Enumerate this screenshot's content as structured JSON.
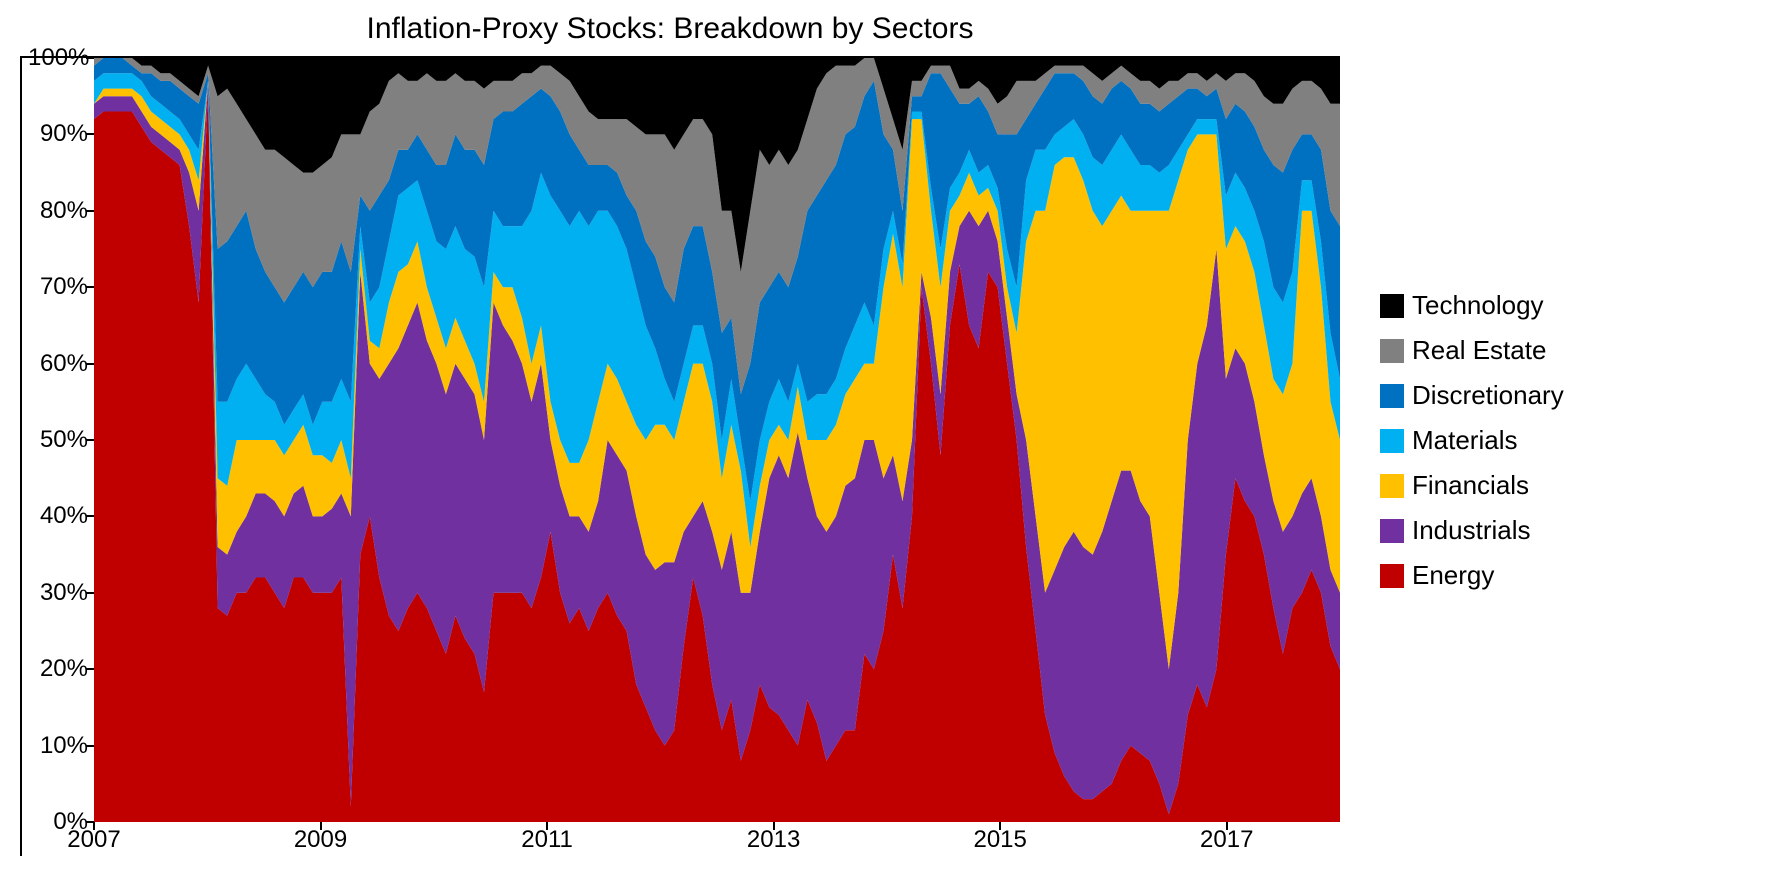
{
  "chart": {
    "type": "stacked_area_100pct",
    "title": "Inflation-Proxy Stocks: Breakdown by Sectors",
    "title_fontsize": 30,
    "title_color": "#000000",
    "background_color": "#ffffff",
    "border_color": "#000000",
    "axis_font_size": 24,
    "axis_font_color": "#000000",
    "x": {
      "start": 2007.0,
      "end": 2018.0,
      "ticks": [
        2007,
        2009,
        2011,
        2013,
        2015,
        2017
      ],
      "step_per_point": 0.083333
    },
    "y": {
      "min": 0,
      "max": 100,
      "ticks": [
        0,
        10,
        20,
        30,
        40,
        50,
        60,
        70,
        80,
        90,
        100
      ],
      "tick_format": "percent"
    },
    "legend": {
      "order_top_to_bottom": [
        "Technology",
        "Real Estate",
        "Discretionary",
        "Materials",
        "Financials",
        "Industrials",
        "Energy"
      ],
      "fontsize": 26,
      "position": "right"
    },
    "series_stack_order_bottom_to_top": [
      "energy",
      "industrials",
      "financials",
      "materials",
      "discretionary",
      "real_estate",
      "technology"
    ],
    "series": {
      "energy": {
        "label": "Energy",
        "color": "#c00000"
      },
      "industrials": {
        "label": "Industrials",
        "color": "#7030a0"
      },
      "financials": {
        "label": "Financials",
        "color": "#ffc000"
      },
      "materials": {
        "label": "Materials",
        "color": "#00b0f0"
      },
      "discretionary": {
        "label": "Discretionary",
        "color": "#0070c0"
      },
      "real_estate": {
        "label": "Real Estate",
        "color": "#808080"
      },
      "technology": {
        "label": "Technology",
        "color": "#000000"
      }
    },
    "cum_top": {
      "energy": [
        92,
        93,
        93,
        93,
        93,
        91,
        89,
        88,
        87,
        86,
        78,
        68,
        96,
        28,
        27,
        30,
        30,
        32,
        32,
        30,
        28,
        32,
        32,
        30,
        30,
        30,
        32,
        2,
        35,
        40,
        32,
        27,
        25,
        28,
        30,
        28,
        25,
        22,
        27,
        24,
        22,
        17,
        30,
        30,
        30,
        30,
        28,
        32,
        38,
        30,
        26,
        28,
        25,
        28,
        30,
        27,
        25,
        18,
        15,
        12,
        10,
        12,
        23,
        32,
        27,
        18,
        12,
        16,
        8,
        12,
        18,
        15,
        14,
        12,
        10,
        16,
        13,
        8,
        10,
        12,
        12,
        22,
        20,
        25,
        35,
        28,
        40,
        70,
        60,
        48,
        65,
        73,
        65,
        62,
        72,
        70,
        60,
        50,
        36,
        25,
        14,
        9,
        6,
        4,
        3,
        3,
        4,
        5,
        8,
        10,
        9,
        8,
        5,
        1,
        5,
        14,
        18,
        15,
        20,
        35,
        45,
        42,
        40,
        35,
        28,
        22,
        28,
        30,
        33,
        30,
        23,
        20
      ],
      "industrials": [
        94,
        95,
        95,
        95,
        95,
        93,
        91,
        90,
        89,
        88,
        85,
        80,
        97,
        36,
        35,
        38,
        40,
        43,
        43,
        42,
        40,
        43,
        44,
        40,
        40,
        41,
        43,
        40,
        72,
        60,
        58,
        60,
        62,
        65,
        68,
        63,
        60,
        56,
        60,
        58,
        56,
        50,
        68,
        65,
        63,
        60,
        55,
        60,
        50,
        44,
        40,
        40,
        38,
        42,
        50,
        48,
        46,
        40,
        35,
        33,
        34,
        34,
        38,
        40,
        42,
        38,
        33,
        38,
        30,
        30,
        38,
        45,
        48,
        45,
        51,
        45,
        40,
        38,
        40,
        44,
        45,
        50,
        50,
        45,
        48,
        42,
        50,
        72,
        66,
        56,
        72,
        78,
        80,
        78,
        80,
        76,
        66,
        56,
        50,
        40,
        30,
        33,
        36,
        38,
        36,
        35,
        38,
        42,
        46,
        46,
        42,
        40,
        30,
        20,
        30,
        50,
        60,
        65,
        75,
        58,
        62,
        60,
        55,
        48,
        42,
        38,
        40,
        43,
        45,
        40,
        33,
        30
      ],
      "financials": [
        94,
        96,
        96,
        96,
        96,
        95,
        93,
        92,
        91,
        90,
        88,
        84,
        97,
        45,
        44,
        50,
        50,
        50,
        50,
        50,
        48,
        50,
        52,
        48,
        48,
        47,
        50,
        45,
        75,
        63,
        62,
        68,
        72,
        73,
        76,
        70,
        66,
        62,
        66,
        63,
        60,
        55,
        72,
        70,
        70,
        66,
        60,
        65,
        55,
        50,
        47,
        47,
        50,
        55,
        60,
        58,
        55,
        52,
        50,
        52,
        52,
        50,
        55,
        60,
        60,
        55,
        45,
        52,
        46,
        36,
        44,
        50,
        52,
        50,
        57,
        50,
        50,
        50,
        52,
        56,
        58,
        60,
        60,
        70,
        77,
        70,
        92,
        92,
        80,
        70,
        80,
        82,
        85,
        82,
        83,
        80,
        70,
        64,
        76,
        80,
        80,
        86,
        87,
        87,
        84,
        80,
        78,
        80,
        82,
        80,
        80,
        80,
        80,
        80,
        84,
        88,
        90,
        90,
        90,
        75,
        78,
        76,
        72,
        65,
        58,
        56,
        60,
        80,
        80,
        70,
        55,
        50
      ],
      "materials": [
        97,
        98,
        98,
        98,
        98,
        97,
        95,
        94,
        93,
        92,
        90,
        88,
        97,
        55,
        55,
        58,
        60,
        58,
        56,
        55,
        52,
        54,
        56,
        52,
        55,
        55,
        58,
        55,
        78,
        68,
        70,
        76,
        82,
        83,
        84,
        80,
        76,
        75,
        78,
        75,
        74,
        70,
        80,
        78,
        78,
        78,
        80,
        85,
        82,
        80,
        78,
        80,
        78,
        80,
        80,
        78,
        75,
        70,
        65,
        62,
        58,
        55,
        60,
        65,
        65,
        60,
        50,
        58,
        50,
        42,
        50,
        55,
        58,
        55,
        60,
        55,
        56,
        56,
        58,
        62,
        65,
        68,
        65,
        75,
        80,
        73,
        93,
        93,
        83,
        75,
        83,
        85,
        88,
        85,
        86,
        83,
        75,
        70,
        84,
        88,
        88,
        90,
        91,
        92,
        90,
        87,
        86,
        88,
        90,
        88,
        86,
        86,
        85,
        86,
        88,
        90,
        92,
        92,
        92,
        82,
        85,
        83,
        80,
        76,
        70,
        68,
        72,
        84,
        84,
        76,
        64,
        58
      ],
      "discretionary": [
        99,
        100,
        100,
        100,
        99,
        98,
        98,
        97,
        97,
        96,
        95,
        94,
        98,
        75,
        76,
        78,
        80,
        75,
        72,
        70,
        68,
        70,
        72,
        70,
        72,
        72,
        76,
        72,
        82,
        80,
        82,
        84,
        88,
        88,
        90,
        88,
        86,
        86,
        90,
        88,
        88,
        86,
        92,
        93,
        93,
        94,
        95,
        96,
        95,
        93,
        90,
        88,
        86,
        86,
        86,
        85,
        82,
        80,
        76,
        74,
        70,
        68,
        75,
        78,
        78,
        72,
        64,
        66,
        56,
        60,
        68,
        70,
        72,
        70,
        74,
        80,
        82,
        84,
        86,
        90,
        91,
        95,
        97,
        90,
        88,
        80,
        95,
        95,
        98,
        98,
        96,
        94,
        94,
        95,
        93,
        90,
        90,
        90,
        92,
        94,
        96,
        98,
        98,
        98,
        97,
        95,
        94,
        96,
        97,
        96,
        94,
        94,
        93,
        94,
        95,
        96,
        96,
        95,
        96,
        92,
        94,
        93,
        91,
        88,
        86,
        85,
        88,
        90,
        90,
        88,
        80,
        78
      ],
      "real_estate": [
        100,
        100,
        100,
        100,
        100,
        99,
        99,
        98,
        98,
        97,
        96,
        95,
        99,
        95,
        96,
        94,
        92,
        90,
        88,
        88,
        87,
        86,
        85,
        85,
        86,
        87,
        90,
        90,
        90,
        93,
        94,
        97,
        98,
        97,
        97,
        98,
        97,
        97,
        98,
        97,
        97,
        96,
        97,
        97,
        97,
        98,
        98,
        99,
        99,
        98,
        97,
        95,
        93,
        92,
        92,
        92,
        92,
        91,
        90,
        90,
        90,
        88,
        90,
        92,
        92,
        90,
        80,
        80,
        72,
        80,
        88,
        86,
        88,
        86,
        88,
        92,
        96,
        98,
        99,
        99,
        99,
        100,
        100,
        96,
        92,
        88,
        97,
        97,
        99,
        99,
        99,
        96,
        96,
        97,
        96,
        94,
        95,
        97,
        97,
        97,
        98,
        99,
        99,
        99,
        99,
        98,
        97,
        98,
        99,
        98,
        97,
        97,
        96,
        97,
        97,
        98,
        98,
        97,
        98,
        97,
        98,
        98,
        97,
        95,
        94,
        94,
        96,
        97,
        97,
        96,
        94,
        94
      ],
      "technology": [
        100,
        100,
        100,
        100,
        100,
        100,
        100,
        100,
        100,
        100,
        100,
        100,
        100,
        100,
        100,
        100,
        100,
        100,
        100,
        100,
        100,
        100,
        100,
        100,
        100,
        100,
        100,
        100,
        100,
        100,
        100,
        100,
        100,
        100,
        100,
        100,
        100,
        100,
        100,
        100,
        100,
        100,
        100,
        100,
        100,
        100,
        100,
        100,
        100,
        100,
        100,
        100,
        100,
        100,
        100,
        100,
        100,
        100,
        100,
        100,
        100,
        100,
        100,
        100,
        100,
        100,
        100,
        100,
        100,
        100,
        100,
        100,
        100,
        100,
        100,
        100,
        100,
        100,
        100,
        100,
        100,
        100,
        100,
        100,
        100,
        100,
        100,
        100,
        100,
        100,
        100,
        100,
        100,
        100,
        100,
        100,
        100,
        100,
        100,
        100,
        100,
        100,
        100,
        100,
        100,
        100,
        100,
        100,
        100,
        100,
        100,
        100,
        100,
        100,
        100,
        100,
        100,
        100,
        100,
        100,
        100,
        100,
        100,
        100,
        100,
        100,
        100,
        100,
        100,
        100,
        100,
        100
      ]
    }
  }
}
